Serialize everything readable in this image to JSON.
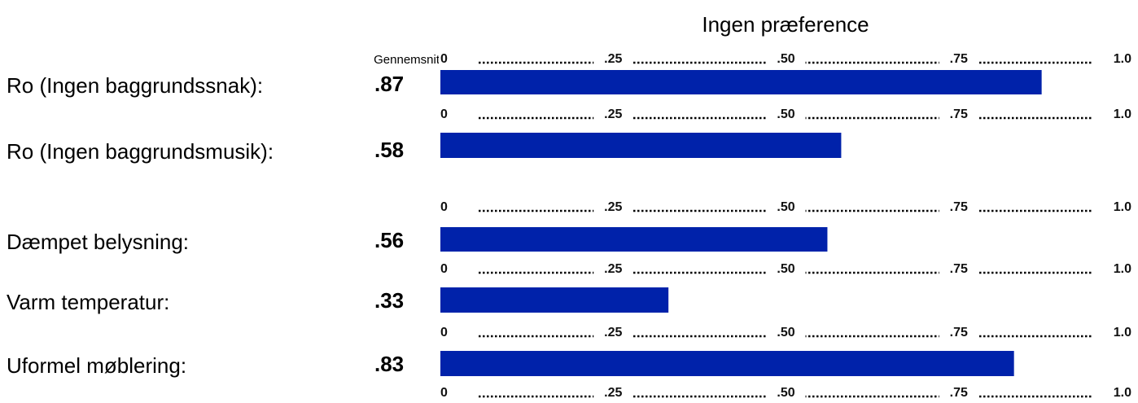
{
  "chart_data": {
    "type": "bar",
    "orientation": "horizontal",
    "axis_title": "Ingen præference",
    "value_column_label": "Gennemsnit",
    "categories": [
      "Ro (Ingen baggrundssnak):",
      "Ro (Ingen baggrundsmusik):",
      "Dæmpet belysning:",
      "Varm temperatur:",
      "Uformel møblering:"
    ],
    "values": [
      0.87,
      0.58,
      0.56,
      0.33,
      0.83
    ],
    "value_labels": [
      ".87",
      ".58",
      ".56",
      ".33",
      ".83"
    ],
    "color": "#0022aa",
    "xlim": [
      0,
      1
    ],
    "xticks": [
      0,
      {
        "value": 0.25,
        "label": ".25"
      },
      {
        "value": 0.5,
        "label": ".50"
      },
      {
        "value": 0.75,
        "label": ".75"
      },
      {
        "value": 1,
        "label": "1.0"
      }
    ]
  }
}
